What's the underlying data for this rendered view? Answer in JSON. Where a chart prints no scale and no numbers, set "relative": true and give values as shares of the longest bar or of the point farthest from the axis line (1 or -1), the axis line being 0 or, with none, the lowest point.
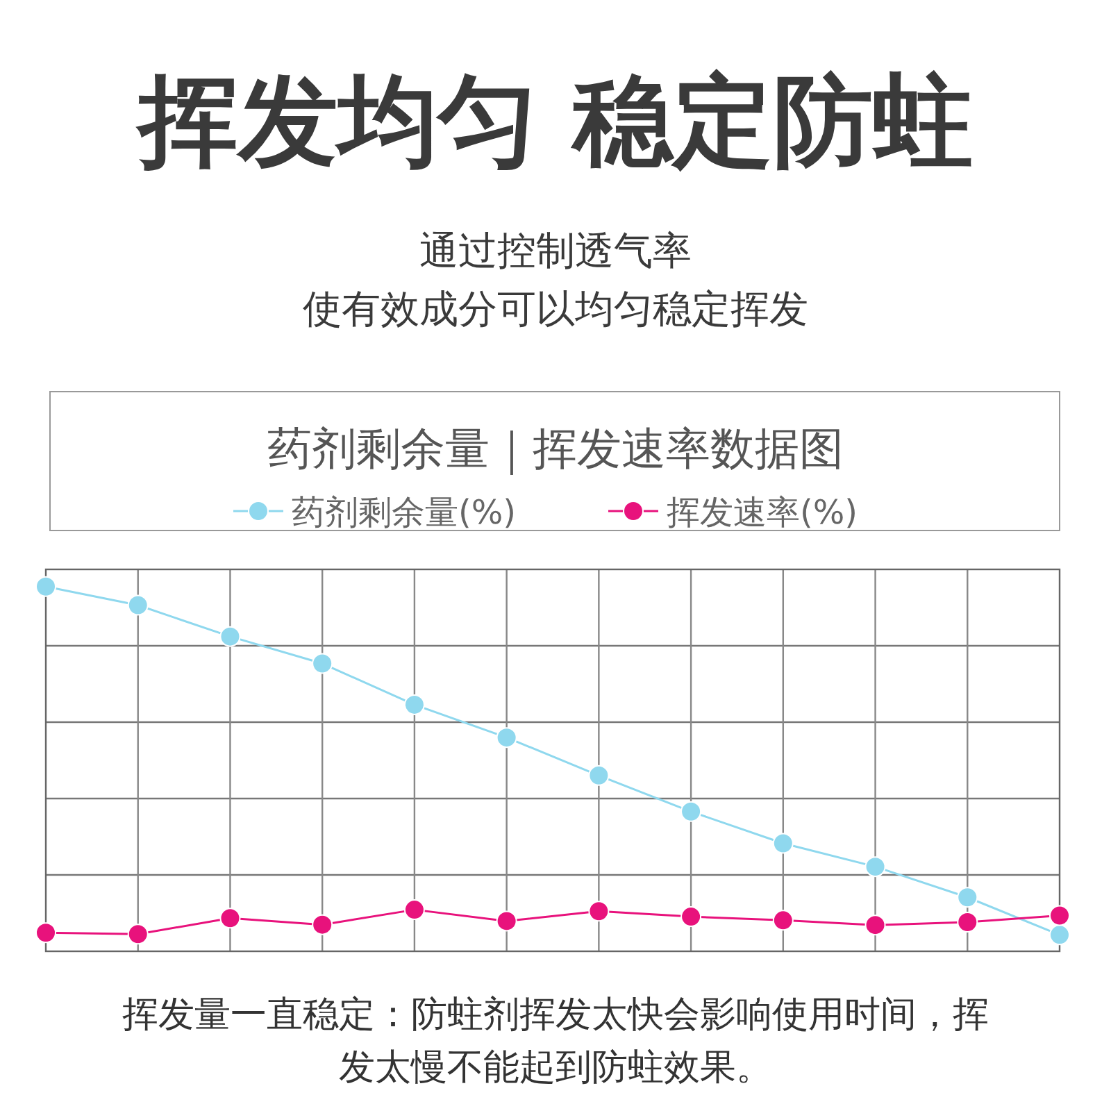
{
  "chart_data": {
    "type": "line",
    "title": "挥发均匀 稳定防蛀",
    "subtitle": "通过控制透气率",
    "annotations": [
      "使有效成分可以均匀稳定挥发",
      "药剂剩余量｜挥发速率数据图",
      "挥发量一直稳定：防蛀剂挥发太快会影响使用时间，挥发太慢不能起到防蛀效果。"
    ],
    "relative": true,
    "categories": [
      null,
      null,
      null,
      null,
      null,
      null,
      null,
      null,
      null,
      null,
      null,
      null
    ],
    "series": [
      {
        "name": "药剂剩余量(%)",
        "color": "#8fd8ee",
        "values": [
          1,
          0.949,
          0.863,
          0.789,
          0.676,
          0.586,
          0.482,
          0.383,
          0.296,
          0.232,
          0.148,
          0.045
        ]
      },
      {
        "name": "挥发速率(%)",
        "color": "#e8127c",
        "values": [
          0.051,
          0.047,
          0.091,
          0.073,
          0.114,
          0.083,
          0.11,
          0.095,
          0.085,
          0.072,
          0.08,
          0.098
        ]
      }
    ],
    "grid": true,
    "legend": "top",
    "marker": "circle",
    "line_style": "solid"
  }
}
